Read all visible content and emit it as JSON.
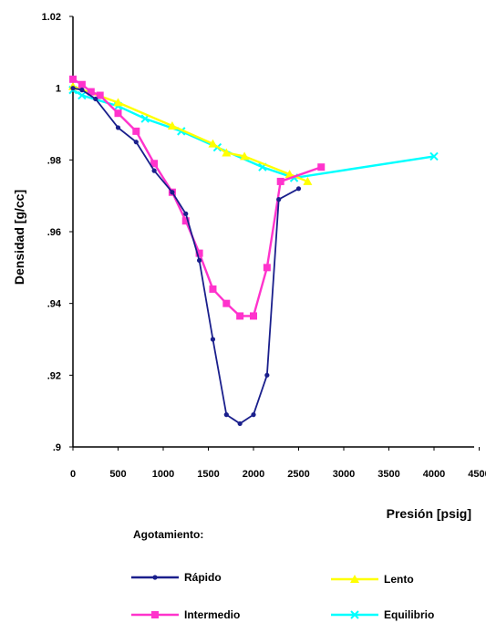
{
  "chart_data": {
    "type": "line",
    "title": "",
    "xlabel": "Presión [psig]",
    "ylabel": "Densidad [g/cc]",
    "xlim": [
      0,
      4500
    ],
    "ylim": [
      0.9,
      1.02
    ],
    "x_ticks": [
      0,
      500,
      1000,
      1500,
      2000,
      2500,
      3000,
      3500,
      4000,
      4500
    ],
    "y_ticks": [
      0.9,
      0.92,
      0.94,
      0.96,
      0.98,
      1.0,
      1.02
    ],
    "x_tick_labels": [
      "0",
      "500",
      "1000",
      "1500",
      "2000",
      "2500",
      "3000",
      "3500",
      "4000",
      "4500"
    ],
    "y_tick_labels": [
      ".9",
      ".92",
      ".94",
      ".96",
      ".98",
      "1",
      "1.02"
    ],
    "grid": false,
    "legend": {
      "title": "Agotamiento:",
      "placement": "bottom"
    },
    "series": [
      {
        "name": "Rápido",
        "color": "#1a1f8c",
        "marker": "circle",
        "x": [
          0,
          100,
          250,
          500,
          700,
          900,
          1100,
          1250,
          1400,
          1550,
          1700,
          1850,
          2000,
          2150,
          2280,
          2500
        ],
        "y": [
          1.0,
          0.9995,
          0.997,
          0.989,
          0.985,
          0.977,
          0.971,
          0.965,
          0.952,
          0.93,
          0.909,
          0.9065,
          0.909,
          0.92,
          0.969,
          0.972
        ]
      },
      {
        "name": "Intermedio",
        "color": "#ff33cc",
        "marker": "square",
        "x": [
          0,
          100,
          200,
          300,
          500,
          700,
          900,
          1100,
          1250,
          1400,
          1550,
          1700,
          1850,
          2000,
          2150,
          2300,
          2750
        ],
        "y": [
          1.0025,
          1.001,
          0.999,
          0.998,
          0.993,
          0.988,
          0.979,
          0.971,
          0.963,
          0.954,
          0.944,
          0.94,
          0.9365,
          0.9365,
          0.95,
          0.974,
          0.978
        ]
      },
      {
        "name": "Lento",
        "color": "#ffff00",
        "marker": "triangle",
        "x": [
          0,
          500,
          1100,
          1550,
          1700,
          1900,
          2400,
          2600
        ],
        "y": [
          1.0005,
          0.996,
          0.9895,
          0.9845,
          0.982,
          0.981,
          0.976,
          0.974
        ]
      },
      {
        "name": "Equilibrio",
        "color": "#00ffff",
        "marker": "x",
        "x": [
          0,
          100,
          500,
          800,
          1200,
          1600,
          2100,
          2450,
          4000
        ],
        "y": [
          0.9995,
          0.998,
          0.995,
          0.9915,
          0.988,
          0.9835,
          0.978,
          0.975,
          0.981
        ]
      }
    ]
  }
}
